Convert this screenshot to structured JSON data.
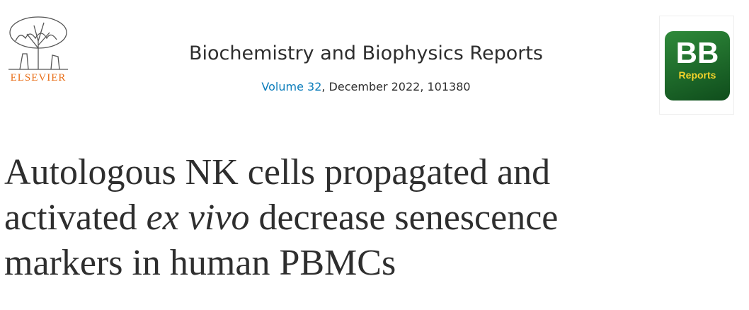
{
  "header": {
    "publisher": "ELSEVIER",
    "journal": "Biochemistry and Biophysics Reports",
    "volume_link": "Volume 32",
    "issue_info": ", December 2022, 101380",
    "cover": {
      "big": "BB",
      "small": "Reports"
    }
  },
  "article": {
    "title_segments": [
      "Autologous NK cells propagated and",
      "activated ",
      "ex vivo",
      " decrease senescence",
      "markers in human PBMCs"
    ]
  }
}
